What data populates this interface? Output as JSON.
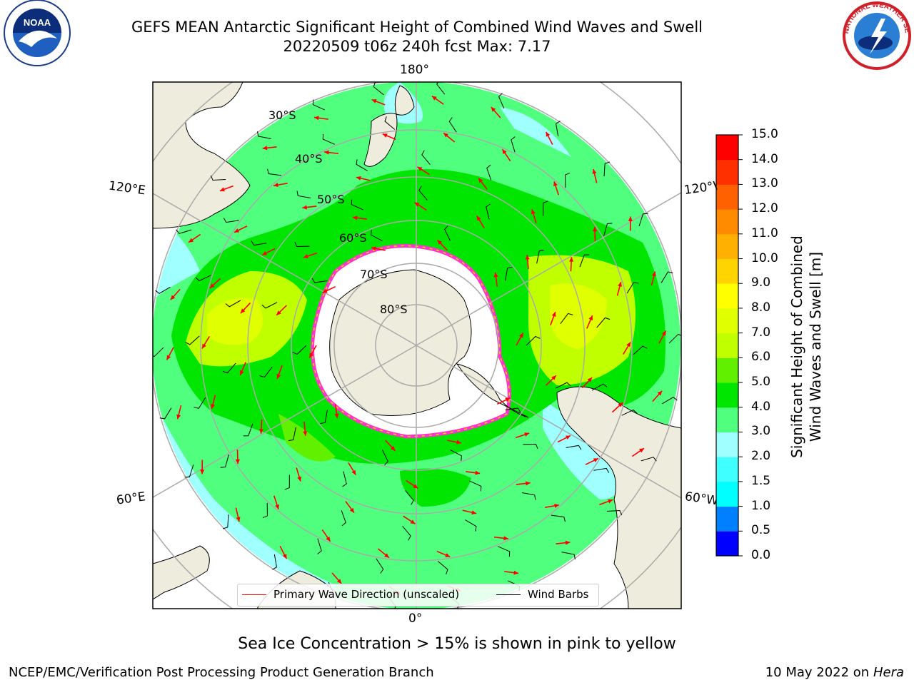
{
  "title": {
    "line1": "GEFS MEAN Antarctic Significant Height of Combined Wind Waves and Swell",
    "line2": "20220509 t06z 240h fcst   Max: 7.17"
  },
  "logos": {
    "left": "NOAA",
    "right_text": "NATIONAL WEATHER SERVICE"
  },
  "map": {
    "projection": "South Polar Stereographic",
    "longitude_labels": {
      "top": "180°",
      "bottom": "0°",
      "upper_left": "120°E",
      "lower_left": "60°E",
      "upper_right": "120°W",
      "lower_right": "60°W"
    },
    "latitude_labels": [
      "30°S",
      "40°S",
      "50°S",
      "60°S",
      "70°S",
      "80°S"
    ],
    "colors": {
      "land": "#eeecdc",
      "ice": "#ffffff",
      "sea_ice_edge": "#ff33cc",
      "arrow": "#ff0000",
      "barb": "#000000",
      "graticule": "#aaaaaa"
    }
  },
  "legend": {
    "primary_wave": "Primary Wave Direction (unscaled)",
    "wind_barbs": "Wind Barbs"
  },
  "colorbar": {
    "label_line1": "Significant Height of Combined",
    "label_line2": "Wind Waves and Swell [m]",
    "ticks": [
      "15.0",
      "14.0",
      "13.0",
      "12.0",
      "11.0",
      "10.0",
      "9.0",
      "8.0",
      "7.0",
      "6.0",
      "5.0",
      "4.0",
      "3.0",
      "2.0",
      "1.5",
      "1.0",
      "0.5",
      "0.0"
    ],
    "levels": [
      0,
      0.5,
      1,
      1.5,
      2,
      3,
      4,
      5,
      6,
      7,
      8,
      9,
      10,
      11,
      12,
      13,
      14,
      15
    ],
    "colors": [
      "#0000ff",
      "#0080ff",
      "#00ffff",
      "#40ffff",
      "#a0ffff",
      "#50ff7e",
      "#00e600",
      "#60f000",
      "#c0ff00",
      "#e0ff00",
      "#ffff00",
      "#ffd400",
      "#ffb000",
      "#ff8c00",
      "#ff6000",
      "#ff3000",
      "#ff0000"
    ]
  },
  "note": "Sea Ice Concentration > 15% is shown in pink to yellow",
  "footer": {
    "left": "NCEP/EMC/Verification Post Processing Product Generation Branch",
    "right_date": "10 May 2022 on",
    "right_machine": "Hera"
  }
}
